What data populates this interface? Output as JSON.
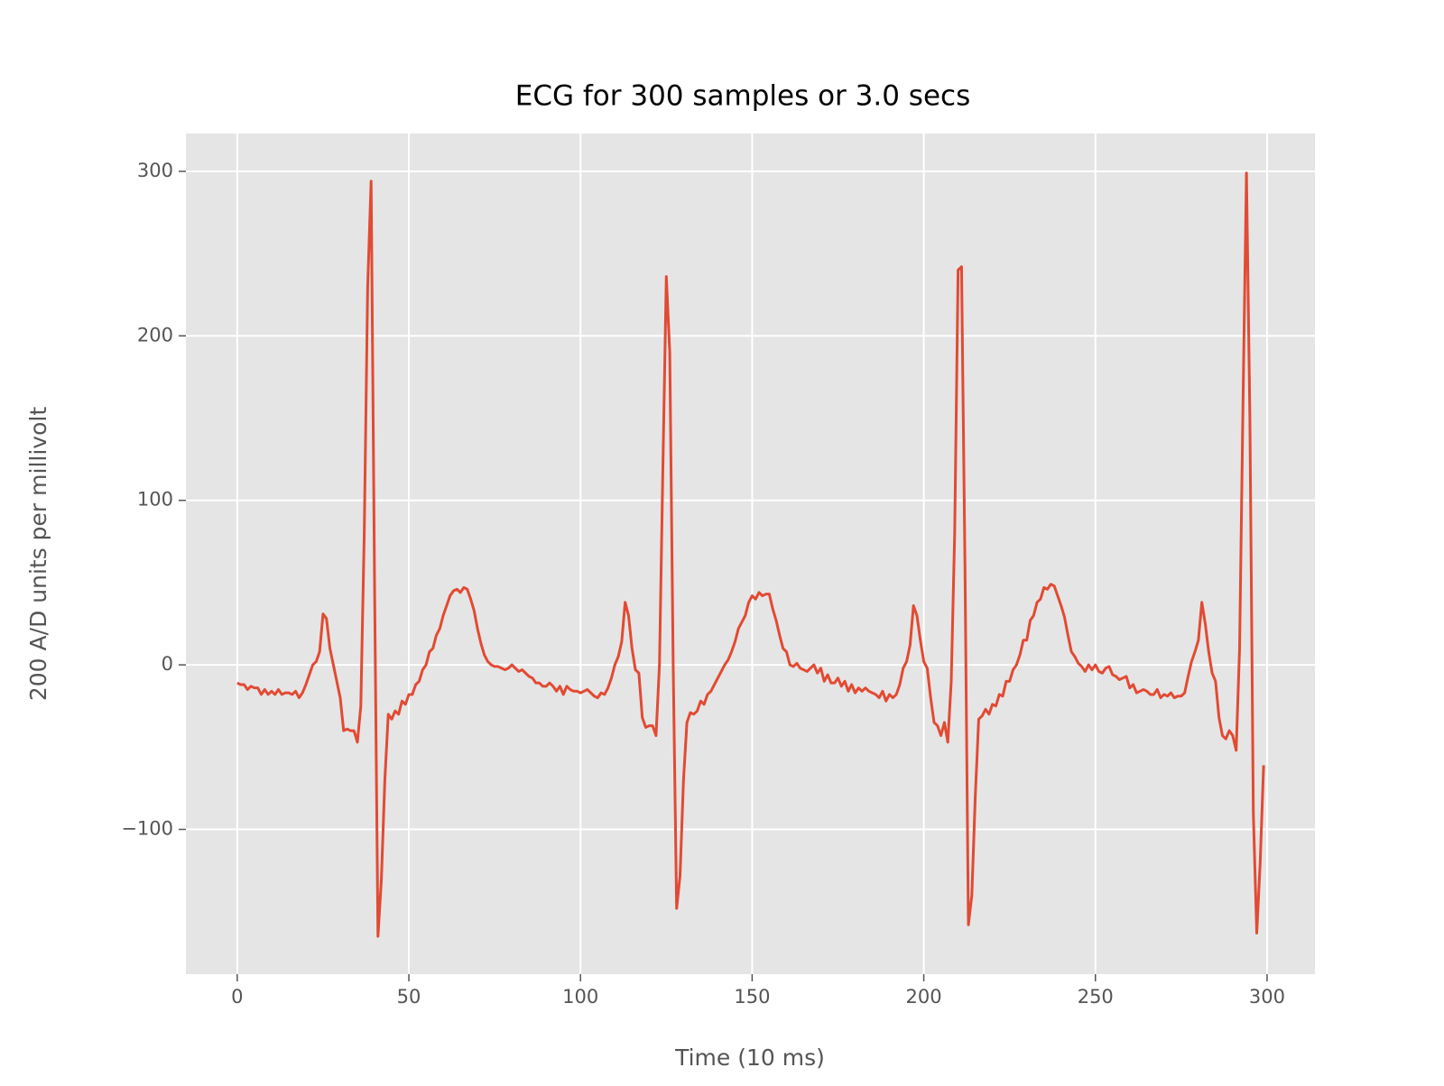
{
  "chart_data": {
    "type": "line",
    "title": "ECG for 300 samples or 3.0 secs",
    "x_label": "Time (10 ms)",
    "y_label": "200 A/D units per millivolt",
    "x": [
      0,
      1,
      2,
      3,
      4,
      5,
      6,
      7,
      8,
      9,
      10,
      11,
      12,
      13,
      14,
      15,
      16,
      17,
      18,
      19,
      20,
      21,
      22,
      23,
      24,
      25,
      26,
      27,
      28,
      29,
      30,
      31,
      32,
      33,
      34,
      35,
      36,
      37,
      38,
      39,
      40,
      41,
      42,
      43,
      44,
      45,
      46,
      47,
      48,
      49,
      50,
      51,
      52,
      53,
      54,
      55,
      56,
      57,
      58,
      59,
      60,
      61,
      62,
      63,
      64,
      65,
      66,
      67,
      68,
      69,
      70,
      71,
      72,
      73,
      74,
      75,
      76,
      77,
      78,
      79,
      80,
      81,
      82,
      83,
      84,
      85,
      86,
      87,
      88,
      89,
      90,
      91,
      92,
      93,
      94,
      95,
      96,
      97,
      98,
      99,
      100,
      101,
      102,
      103,
      104,
      105,
      106,
      107,
      108,
      109,
      110,
      111,
      112,
      113,
      114,
      115,
      116,
      117,
      118,
      119,
      120,
      121,
      122,
      123,
      124,
      125,
      126,
      127,
      128,
      129,
      130,
      131,
      132,
      133,
      134,
      135,
      136,
      137,
      138,
      139,
      140,
      141,
      142,
      143,
      144,
      145,
      146,
      147,
      148,
      149,
      150,
      151,
      152,
      153,
      154,
      155,
      156,
      157,
      158,
      159,
      160,
      161,
      162,
      163,
      164,
      165,
      166,
      167,
      168,
      169,
      170,
      171,
      172,
      173,
      174,
      175,
      176,
      177,
      178,
      179,
      180,
      181,
      182,
      183,
      184,
      185,
      186,
      187,
      188,
      189,
      190,
      191,
      192,
      193,
      194,
      195,
      196,
      197,
      198,
      199,
      200,
      201,
      202,
      203,
      204,
      205,
      206,
      207,
      208,
      209,
      210,
      211,
      212,
      213,
      214,
      215,
      216,
      217,
      218,
      219,
      220,
      221,
      222,
      223,
      224,
      225,
      226,
      227,
      228,
      229,
      230,
      231,
      232,
      233,
      234,
      235,
      236,
      237,
      238,
      239,
      240,
      241,
      242,
      243,
      244,
      245,
      246,
      247,
      248,
      249,
      250,
      251,
      252,
      253,
      254,
      255,
      256,
      257,
      258,
      259,
      260,
      261,
      262,
      263,
      264,
      265,
      266,
      267,
      268,
      269,
      270,
      271,
      272,
      273,
      274,
      275,
      276,
      277,
      278,
      279,
      280,
      281,
      282,
      283,
      284,
      285,
      286,
      287,
      288,
      289,
      290,
      291,
      292,
      293,
      294,
      295,
      296,
      297,
      298,
      299
    ],
    "series": [
      {
        "color": "#e24a33",
        "values": [
          -11,
          -12,
          -12,
          -15,
          -13,
          -14,
          -14,
          -18,
          -15,
          -18,
          -16,
          -18,
          -15,
          -18,
          -17,
          -17,
          -18,
          -16,
          -20,
          -17,
          -12,
          -6,
          0,
          2,
          8,
          31,
          28,
          10,
          0,
          -10,
          -20,
          -40,
          -39,
          -40,
          -40,
          -47,
          -25,
          80,
          230,
          294,
          50,
          -165,
          -130,
          -70,
          -30,
          -33,
          -28,
          -30,
          -22,
          -24,
          -18,
          -18,
          -12,
          -10,
          -3,
          0,
          8,
          10,
          18,
          22,
          30,
          36,
          42,
          45,
          46,
          44,
          47,
          46,
          40,
          33,
          22,
          13,
          6,
          2,
          0,
          -1,
          -1,
          -2,
          -3,
          -2,
          0,
          -2,
          -4,
          -3,
          -5,
          -7,
          -8,
          -11,
          -11,
          -13,
          -13,
          -11,
          -13,
          -16,
          -13,
          -18,
          -13,
          -15,
          -16,
          -16,
          -17,
          -16,
          -15,
          -17,
          -19,
          -20,
          -17,
          -18,
          -14,
          -8,
          0,
          5,
          14,
          38,
          30,
          10,
          -3,
          -5,
          -32,
          -38,
          -37,
          -37,
          -43,
          0,
          120,
          236,
          190,
          0,
          -148,
          -128,
          -70,
          -35,
          -29,
          -30,
          -28,
          -22,
          -24,
          -18,
          -16,
          -12,
          -8,
          -4,
          0,
          3,
          8,
          14,
          22,
          26,
          30,
          38,
          42,
          40,
          44,
          42,
          43,
          43,
          34,
          27,
          18,
          10,
          8,
          0,
          -1,
          1,
          -2,
          -3,
          -4,
          -2,
          0,
          -5,
          -2,
          -10,
          -6,
          -11,
          -11,
          -8,
          -13,
          -10,
          -16,
          -12,
          -17,
          -14,
          -16,
          -14,
          -16,
          -17,
          -18,
          -20,
          -16,
          -22,
          -18,
          -20,
          -18,
          -12,
          -2,
          2,
          12,
          36,
          30,
          15,
          2,
          -2,
          -20,
          -35,
          -37,
          -43,
          -35,
          -47,
          -10,
          80,
          240,
          242,
          60,
          -158,
          -140,
          -80,
          -33,
          -31,
          -27,
          -30,
          -24,
          -25,
          -18,
          -19,
          -10,
          -10,
          -3,
          0,
          6,
          15,
          15,
          27,
          30,
          38,
          40,
          47,
          46,
          49,
          48,
          42,
          36,
          29,
          18,
          8,
          5,
          1,
          -1,
          -4,
          0,
          -3,
          0,
          -4,
          -5,
          -2,
          -1,
          -6,
          -7,
          -9,
          -8,
          -7,
          -14,
          -12,
          -17,
          -16,
          -15,
          -16,
          -18,
          -18,
          -15,
          -20,
          -18,
          -19,
          -17,
          -20,
          -19,
          -19,
          -17,
          -7,
          2,
          8,
          15,
          38,
          25,
          8,
          -5,
          -10,
          -32,
          -43,
          -45,
          -40,
          -43,
          -52,
          10,
          160,
          299,
          150,
          -90,
          -163,
          -120,
          -61
        ]
      }
    ],
    "xlim": [
      -14.95,
      313.95
    ],
    "xticks": [
      0,
      50,
      100,
      150,
      200,
      250,
      300
    ],
    "ylim": [
      -188,
      323
    ],
    "yticks": [
      {
        "value": -100,
        "label": "−100"
      },
      0,
      100,
      200,
      300
    ],
    "grid": true
  }
}
